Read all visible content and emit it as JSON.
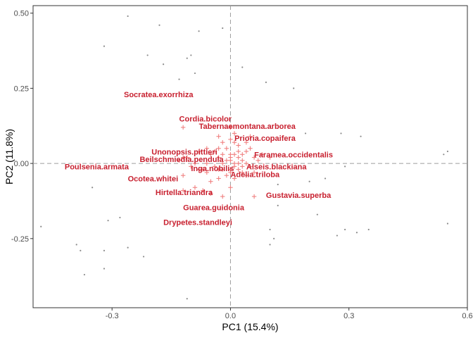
{
  "chart_data": {
    "type": "scatter",
    "xlabel": "PC1 (15.4%)",
    "ylabel": "PC2 (11.8%)",
    "xlim": [
      -0.5,
      0.6
    ],
    "ylim": [
      -0.48,
      0.525
    ],
    "xticks": [
      -0.3,
      0.0,
      0.3,
      0.6
    ],
    "xtick_labels": [
      "-0.3",
      "0.0",
      "0.3",
      "0.6"
    ],
    "yticks": [
      -0.25,
      0.0,
      0.25,
      0.5
    ],
    "ytick_labels": [
      "-0.25",
      "0.00",
      "0.25",
      "0.50"
    ],
    "reference_lines": {
      "x": 0.0,
      "y": 0.0
    },
    "grid": false,
    "colors": {
      "sites": "#8c8c8c",
      "species": "#f08080",
      "labels": "#c8202f",
      "reflines": "#9e9e9e",
      "frame": "#333333"
    },
    "sites": [
      [
        -0.26,
        0.49
      ],
      [
        -0.18,
        0.46
      ],
      [
        -0.08,
        0.44
      ],
      [
        -0.02,
        0.45
      ],
      [
        -0.32,
        0.39
      ],
      [
        -0.21,
        0.36
      ],
      [
        -0.11,
        0.35
      ],
      [
        -0.1,
        0.36
      ],
      [
        -0.17,
        0.33
      ],
      [
        -0.09,
        0.3
      ],
      [
        -0.13,
        0.28
      ],
      [
        0.03,
        0.32
      ],
      [
        0.09,
        0.27
      ],
      [
        0.16,
        0.25
      ],
      [
        0.19,
        0.1
      ],
      [
        0.28,
        0.1
      ],
      [
        0.33,
        0.09
      ],
      [
        0.55,
        0.04
      ],
      [
        0.54,
        0.03
      ],
      [
        0.29,
        -0.01
      ],
      [
        0.24,
        -0.05
      ],
      [
        0.2,
        -0.06
      ],
      [
        0.12,
        -0.07
      ],
      [
        -0.35,
        -0.08
      ],
      [
        -0.39,
        -0.27
      ],
      [
        -0.38,
        -0.29
      ],
      [
        -0.31,
        -0.19
      ],
      [
        -0.28,
        -0.18
      ],
      [
        -0.32,
        -0.29
      ],
      [
        -0.26,
        -0.28
      ],
      [
        -0.32,
        -0.35
      ],
      [
        -0.37,
        -0.37
      ],
      [
        -0.48,
        -0.21
      ],
      [
        -0.22,
        -0.31
      ],
      [
        0.12,
        -0.14
      ],
      [
        0.22,
        -0.17
      ],
      [
        0.1,
        -0.22
      ],
      [
        0.11,
        -0.25
      ],
      [
        0.1,
        -0.27
      ],
      [
        0.27,
        -0.24
      ],
      [
        0.29,
        -0.22
      ],
      [
        0.32,
        -0.23
      ],
      [
        0.35,
        -0.22
      ],
      [
        0.55,
        -0.2
      ],
      [
        -0.11,
        -0.45
      ]
    ],
    "species": [
      [
        -0.12,
        0.12
      ],
      [
        -0.11,
        0.02
      ],
      [
        -0.12,
        0.02
      ],
      [
        -0.13,
        0.01
      ],
      [
        -0.07,
        -0.02
      ],
      [
        -0.12,
        -0.04
      ],
      [
        -0.06,
        0.0
      ],
      [
        -0.1,
        -0.01
      ],
      [
        -0.09,
        -0.08
      ],
      [
        -0.07,
        -0.09
      ],
      [
        -0.12,
        -0.09
      ],
      [
        -0.08,
        -0.02
      ],
      [
        -0.05,
        -0.06
      ],
      [
        -0.03,
        0.02
      ],
      [
        -0.02,
        -0.02
      ],
      [
        -0.04,
        0.04
      ],
      [
        -0.05,
        0.03
      ],
      [
        -0.03,
        0.05
      ],
      [
        -0.02,
        0.07
      ],
      [
        0.0,
        0.08
      ],
      [
        0.01,
        0.1
      ],
      [
        0.0,
        0.12
      ],
      [
        0.02,
        0.04
      ],
      [
        0.02,
        0.02
      ],
      [
        0.03,
        0.01
      ],
      [
        0.01,
        -0.01
      ],
      [
        0.0,
        -0.03
      ],
      [
        0.02,
        -0.02
      ],
      [
        0.01,
        -0.05
      ],
      [
        -0.01,
        -0.04
      ],
      [
        0.0,
        0.03
      ],
      [
        0.03,
        0.03
      ],
      [
        0.04,
        0.04
      ],
      [
        0.05,
        -0.01
      ],
      [
        0.06,
        0.02
      ],
      [
        0.07,
        0.01
      ],
      [
        0.03,
        -0.01
      ],
      [
        0.04,
        0.0
      ],
      [
        0.02,
        0.06
      ],
      [
        -0.01,
        0.01
      ],
      [
        -0.02,
        0.0
      ],
      [
        -0.04,
        -0.01
      ],
      [
        -0.03,
        -0.05
      ],
      [
        -0.06,
        0.05
      ],
      [
        -0.09,
        0.0
      ],
      [
        -0.08,
        0.04
      ],
      [
        0.01,
        0.0
      ],
      [
        0.0,
        0.01
      ],
      [
        -0.01,
        0.05
      ],
      [
        0.02,
        0.0
      ],
      [
        0.03,
        -0.03
      ],
      [
        0.04,
        -0.04
      ],
      [
        0.05,
        0.05
      ],
      [
        0.06,
        -0.03
      ],
      [
        0.08,
        0.03
      ],
      [
        0.1,
        0.02
      ],
      [
        0.04,
        0.07
      ],
      [
        0.01,
        0.07
      ],
      [
        -0.03,
        0.09
      ],
      [
        -0.05,
        -0.1
      ],
      [
        -0.02,
        -0.11
      ],
      [
        0.0,
        -0.08
      ],
      [
        0.0,
        0.02
      ],
      [
        0.01,
        0.03
      ],
      [
        -0.02,
        0.03
      ],
      [
        0.06,
        -0.11
      ],
      [
        -0.03,
        -0.02
      ],
      [
        -0.06,
        -0.03
      ],
      [
        0.0,
        -0.02
      ],
      [
        0.05,
        0.09
      ]
    ],
    "labels": [
      {
        "text": "Socratea.exorrhiza",
        "x": -0.27,
        "y": 0.22
      },
      {
        "text": "Cordia.bicolor",
        "x": -0.13,
        "y": 0.14
      },
      {
        "text": "Tabernaemontana.arborea",
        "x": -0.08,
        "y": 0.115
      },
      {
        "text": "Prioria.copaifera",
        "x": 0.01,
        "y": 0.075
      },
      {
        "text": "Unonopsis.pittieri",
        "x": -0.2,
        "y": 0.03
      },
      {
        "text": "Faramea.occidentalis",
        "x": 0.06,
        "y": 0.02
      },
      {
        "text": "Beilschmiedia.pendula",
        "x": -0.23,
        "y": 0.005
      },
      {
        "text": "Poulsenia.armata",
        "x": -0.42,
        "y": -0.02
      },
      {
        "text": "Alseis.blackiana",
        "x": 0.04,
        "y": -0.02
      },
      {
        "text": "Inga.nobilis",
        "x": -0.1,
        "y": -0.025
      },
      {
        "text": "Adelia.triloba",
        "x": 0.0,
        "y": -0.045
      },
      {
        "text": "Ocotea.whitei",
        "x": -0.26,
        "y": -0.06
      },
      {
        "text": "Hirtella.triandra",
        "x": -0.19,
        "y": -0.105
      },
      {
        "text": "Gustavia.superba",
        "x": 0.09,
        "y": -0.115
      },
      {
        "text": "Guarea.guidonia",
        "x": -0.12,
        "y": -0.155
      },
      {
        "text": "Drypetes.standleyi",
        "x": -0.17,
        "y": -0.205
      }
    ]
  }
}
